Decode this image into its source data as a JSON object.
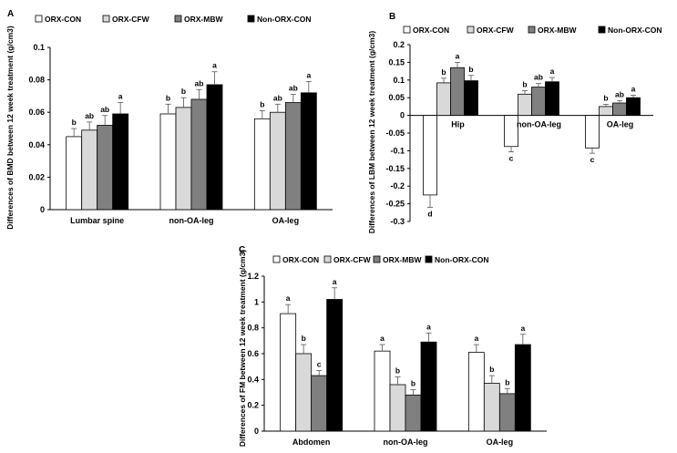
{
  "chart_data": [
    {
      "type": "bar",
      "panel": "A",
      "title": "",
      "xlabel": "",
      "ylabel": "Differences of BMD between 12 week treatment (g/cm3)",
      "ylim": [
        0,
        0.1
      ],
      "yticks": [
        "0",
        "0.02",
        "0.04",
        "0.06",
        "0.08",
        "0.1"
      ],
      "ytick_values": [
        0,
        0.02,
        0.04,
        0.06,
        0.08,
        0.1
      ],
      "categories": [
        "Lumbar spine",
        "non-OA-leg",
        "OA-leg"
      ],
      "series": [
        {
          "name": "ORX-CON",
          "color": "#ffffff",
          "values": [
            0.045,
            0.059,
            0.056
          ],
          "errors": [
            0.005,
            0.006,
            0.005
          ],
          "letters": [
            "b",
            "b",
            "b"
          ]
        },
        {
          "name": "ORX-CFW",
          "color": "#d9d9d9",
          "values": [
            0.049,
            0.063,
            0.06
          ],
          "errors": [
            0.005,
            0.006,
            0.005
          ],
          "letters": [
            "ab",
            "b",
            "ab"
          ]
        },
        {
          "name": "ORX-MBW",
          "color": "#808080",
          "values": [
            0.052,
            0.068,
            0.066
          ],
          "errors": [
            0.006,
            0.006,
            0.005
          ],
          "letters": [
            "ab",
            "ab",
            "ab"
          ]
        },
        {
          "name": "Non-ORX-CON",
          "color": "#000000",
          "values": [
            0.059,
            0.077,
            0.072
          ],
          "errors": [
            0.007,
            0.008,
            0.007
          ],
          "letters": [
            "a",
            "a",
            "a"
          ]
        }
      ]
    },
    {
      "type": "bar",
      "panel": "B",
      "title": "",
      "xlabel": "",
      "ylabel": "Differences of LBM between 12 week treatment (g/cm3)",
      "ylim": [
        -0.3,
        0.2
      ],
      "yticks": [
        "-0.3",
        "-0.25",
        "-0.2",
        "-0.15",
        "-0.1",
        "-0.05",
        "0",
        "0.05",
        "0.1",
        "0.15",
        "0.2"
      ],
      "ytick_values": [
        -0.3,
        -0.25,
        -0.2,
        -0.15,
        -0.1,
        -0.05,
        0,
        0.05,
        0.1,
        0.15,
        0.2
      ],
      "categories": [
        "Hip",
        "non-OA-leg",
        "OA-leg"
      ],
      "series": [
        {
          "name": "ORX-CON",
          "color": "#ffffff",
          "values": [
            -0.225,
            -0.088,
            -0.092
          ],
          "errors": [
            0.035,
            0.015,
            0.015
          ],
          "letters": [
            "d",
            "c",
            "c"
          ]
        },
        {
          "name": "ORX-CFW",
          "color": "#d9d9d9",
          "values": [
            0.092,
            0.06,
            0.025
          ],
          "errors": [
            0.013,
            0.01,
            0.006
          ],
          "letters": [
            "b",
            "b",
            "b"
          ]
        },
        {
          "name": "ORX-MBW",
          "color": "#808080",
          "values": [
            0.135,
            0.08,
            0.035
          ],
          "errors": [
            0.015,
            0.01,
            0.007
          ],
          "letters": [
            "a",
            "ab",
            "ab"
          ]
        },
        {
          "name": "Non-ORX-CON",
          "color": "#000000",
          "values": [
            0.098,
            0.095,
            0.05
          ],
          "errors": [
            0.015,
            0.012,
            0.007
          ],
          "letters": [
            "b",
            "a",
            "a"
          ]
        }
      ]
    },
    {
      "type": "bar",
      "panel": "C",
      "title": "",
      "xlabel": "",
      "ylabel": "Differences of FM between 12 week treatment (g/cm3)",
      "ylim": [
        0,
        1.2
      ],
      "yticks": [
        "0",
        "0.2",
        "0.4",
        "0.6",
        "0.8",
        "1",
        "1.2"
      ],
      "ytick_values": [
        0,
        0.2,
        0.4,
        0.6,
        0.8,
        1,
        1.2
      ],
      "categories": [
        "Abdomen",
        "non-OA-leg",
        "OA-leg"
      ],
      "series": [
        {
          "name": "ORX-CON",
          "color": "#ffffff",
          "values": [
            0.91,
            0.62,
            0.61
          ],
          "errors": [
            0.07,
            0.05,
            0.06
          ],
          "letters": [
            "a",
            "a",
            "a"
          ]
        },
        {
          "name": "ORX-CFW",
          "color": "#d9d9d9",
          "values": [
            0.6,
            0.36,
            0.37
          ],
          "errors": [
            0.07,
            0.06,
            0.06
          ],
          "letters": [
            "b",
            "b",
            "b"
          ]
        },
        {
          "name": "ORX-MBW",
          "color": "#808080",
          "values": [
            0.43,
            0.28,
            0.29
          ],
          "errors": [
            0.04,
            0.04,
            0.04
          ],
          "letters": [
            "c",
            "b",
            "b"
          ]
        },
        {
          "name": "Non-ORX-CON",
          "color": "#000000",
          "values": [
            1.02,
            0.69,
            0.67
          ],
          "errors": [
            0.09,
            0.07,
            0.08
          ],
          "letters": [
            "a",
            "a",
            "a"
          ]
        }
      ]
    }
  ]
}
